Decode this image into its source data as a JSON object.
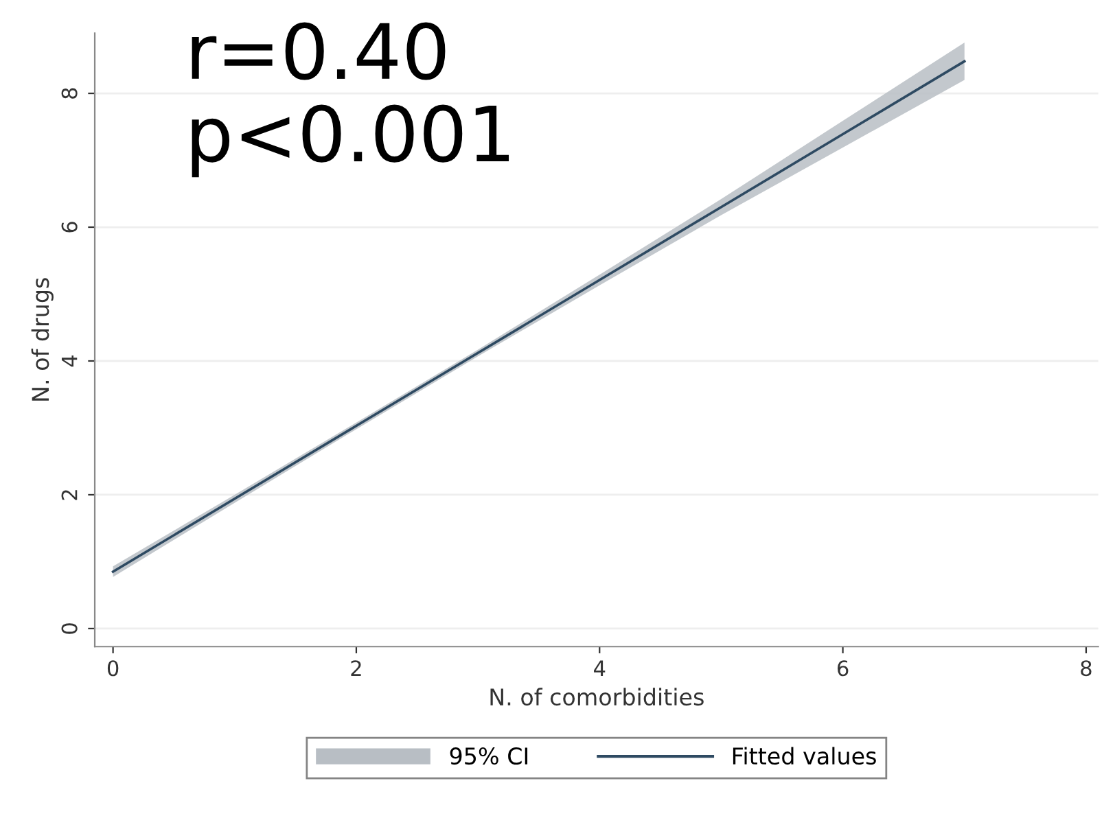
{
  "chart_data": {
    "type": "line",
    "xlabel": "N. of comorbidities",
    "ylabel": "N. of drugs",
    "annotations": [
      "r=0.40\np<0.001",
      "95% CI"
    ],
    "x": [
      0,
      1,
      2,
      3,
      4,
      5,
      6,
      7
    ],
    "series": [
      {
        "name": "Fitted values",
        "color": "#2e4a62",
        "values": [
          0.85,
          1.94,
          3.03,
          4.12,
          5.21,
          6.3,
          7.39,
          8.48
        ],
        "lower": [
          0.77,
          1.88,
          2.98,
          4.07,
          5.13,
          6.18,
          7.19,
          8.2
        ],
        "upper": [
          0.93,
          2.0,
          3.08,
          4.17,
          5.29,
          6.42,
          7.59,
          8.76
        ]
      }
    ],
    "xlim": [
      -0.15,
      8.1
    ],
    "ylim": [
      -0.27,
      8.9
    ],
    "xticks": [
      0,
      2,
      4,
      6,
      8
    ],
    "yticks": [
      0,
      2,
      4,
      6,
      8
    ],
    "grid": "y",
    "legend": "bottom",
    "marker": "none",
    "line_style": "solid"
  }
}
